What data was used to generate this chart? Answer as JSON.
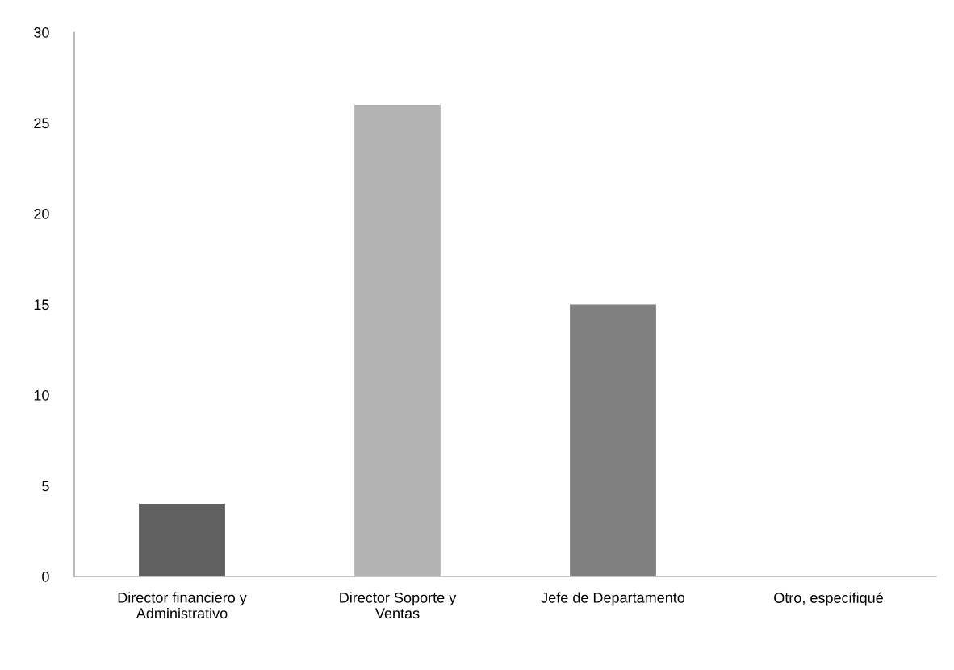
{
  "chart_data": {
    "type": "bar",
    "categories": [
      "Director financiero y\nAdministrativo",
      "Director Soporte y\nVentas",
      "Jefe de Departamento",
      "Otro, especifiqué"
    ],
    "values": [
      4,
      26,
      15,
      0
    ],
    "colors": [
      "#606060",
      "#b3b3b3",
      "#808080",
      "#808080"
    ],
    "ylim": [
      0,
      30
    ],
    "yticks": [
      0,
      5,
      10,
      15,
      20,
      25,
      30
    ],
    "grid": false,
    "legend": false
  }
}
